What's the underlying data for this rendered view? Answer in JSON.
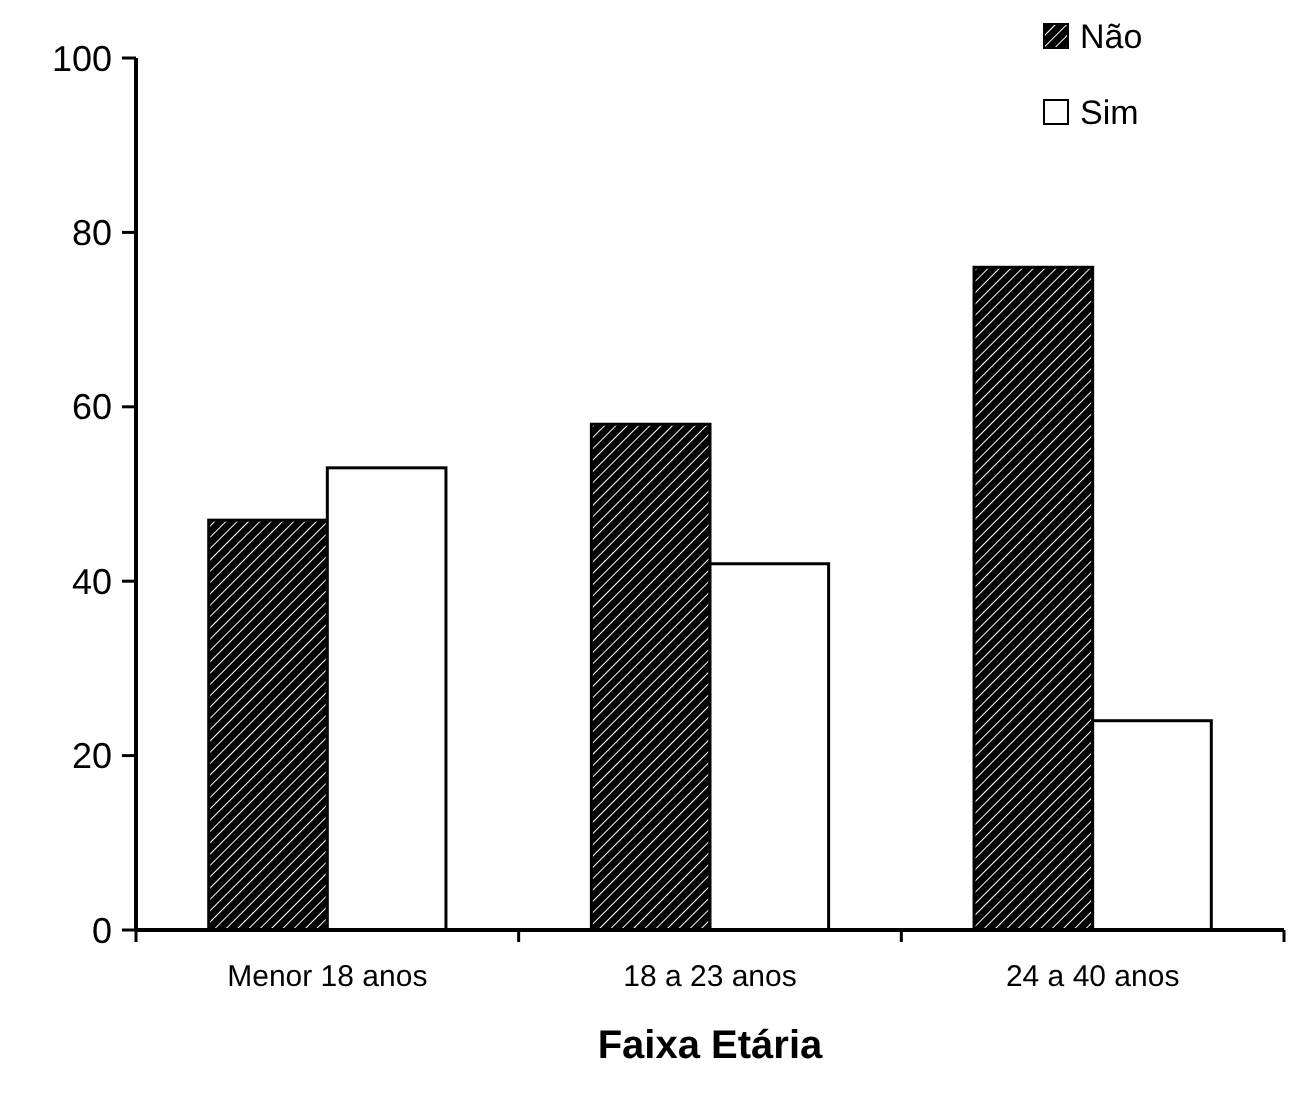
{
  "chart_data": {
    "type": "bar",
    "xlabel": "Faixa Etária",
    "categories": [
      "Menor 18 anos",
      "18 a 23 anos",
      "24 a 40 anos"
    ],
    "series": [
      {
        "name": "Não",
        "color": "#000000",
        "values": [
          47,
          58,
          76
        ]
      },
      {
        "name": "Sim",
        "color": "#ffffff",
        "values": [
          53,
          42,
          24
        ]
      }
    ],
    "ylim": [
      0,
      100
    ],
    "yticks": [
      0,
      20,
      40,
      60,
      80,
      100
    ],
    "grid": false,
    "legend": "top right"
  }
}
